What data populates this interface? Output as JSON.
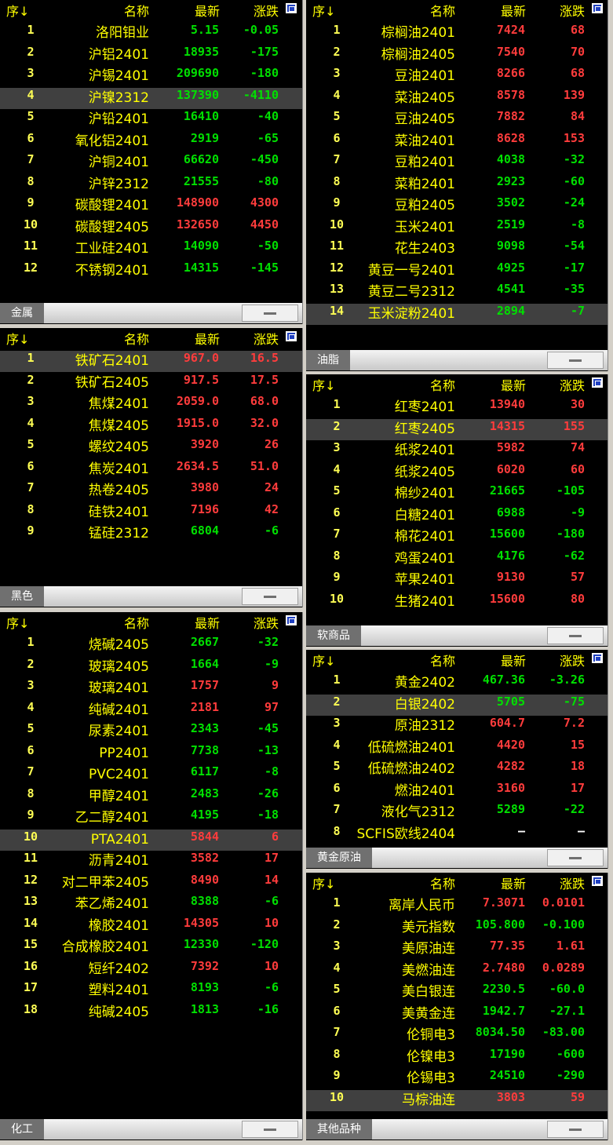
{
  "panels": [
    {
      "tab": "金属",
      "header": [
        "序↓",
        "名称",
        "最新",
        "涨跌"
      ],
      "selected_row": 3,
      "rows": [
        [
          "1",
          "洛阳钼业",
          "5.15",
          "-0.05"
        ],
        [
          "2",
          "沪铝2401",
          "18935",
          "-175"
        ],
        [
          "3",
          "沪锡2401",
          "209690",
          "-180"
        ],
        [
          "4",
          "沪镍2312",
          "137390",
          "-4110"
        ],
        [
          "5",
          "沪铅2401",
          "16410",
          "-40"
        ],
        [
          "6",
          "氧化铝2401",
          "2919",
          "-65"
        ],
        [
          "7",
          "沪铜2401",
          "66620",
          "-450"
        ],
        [
          "8",
          "沪锌2312",
          "21555",
          "-80"
        ],
        [
          "9",
          "碳酸锂2401",
          "148900",
          "4300"
        ],
        [
          "10",
          "碳酸锂2405",
          "132650",
          "4450"
        ],
        [
          "11",
          "工业硅2401",
          "14090",
          "-50"
        ],
        [
          "12",
          "不锈钢2401",
          "14315",
          "-145"
        ]
      ]
    },
    {
      "tab": "黑色",
      "header": [
        "序↓",
        "名称",
        "最新",
        "涨跌"
      ],
      "selected_row": 0,
      "rows": [
        [
          "1",
          "铁矿石2401",
          "967.0",
          "16.5"
        ],
        [
          "2",
          "铁矿石2405",
          "917.5",
          "17.5"
        ],
        [
          "3",
          "焦煤2401",
          "2059.0",
          "68.0"
        ],
        [
          "4",
          "焦煤2405",
          "1915.0",
          "32.0"
        ],
        [
          "5",
          "螺纹2405",
          "3920",
          "26"
        ],
        [
          "6",
          "焦炭2401",
          "2634.5",
          "51.0"
        ],
        [
          "7",
          "热卷2405",
          "3980",
          "24"
        ],
        [
          "8",
          "硅铁2401",
          "7196",
          "42"
        ],
        [
          "9",
          "锰硅2312",
          "6804",
          "-6"
        ]
      ]
    },
    {
      "tab": "化工",
      "header": [
        "序↓",
        "名称",
        "最新",
        "涨跌"
      ],
      "selected_row": 9,
      "rows": [
        [
          "1",
          "烧碱2405",
          "2667",
          "-32"
        ],
        [
          "2",
          "玻璃2405",
          "1664",
          "-9"
        ],
        [
          "3",
          "玻璃2401",
          "1757",
          "9"
        ],
        [
          "4",
          "纯碱2401",
          "2181",
          "97"
        ],
        [
          "5",
          "尿素2401",
          "2343",
          "-45"
        ],
        [
          "6",
          "PP2401",
          "7738",
          "-13"
        ],
        [
          "7",
          "PVC2401",
          "6117",
          "-8"
        ],
        [
          "8",
          "甲醇2401",
          "2483",
          "-26"
        ],
        [
          "9",
          "乙二醇2401",
          "4195",
          "-18"
        ],
        [
          "10",
          "PTA2401",
          "5844",
          "6"
        ],
        [
          "11",
          "沥青2401",
          "3582",
          "17"
        ],
        [
          "12",
          "对二甲苯2405",
          "8490",
          "14"
        ],
        [
          "13",
          "苯乙烯2401",
          "8388",
          "-6"
        ],
        [
          "14",
          "橡胶2401",
          "14305",
          "10"
        ],
        [
          "15",
          "合成橡胶2401",
          "12330",
          "-120"
        ],
        [
          "16",
          "短纤2402",
          "7392",
          "10"
        ],
        [
          "17",
          "塑料2401",
          "8193",
          "-6"
        ],
        [
          "18",
          "纯碱2405",
          "1813",
          "-16"
        ]
      ]
    },
    {
      "tab": "油脂",
      "header": [
        "序↓",
        "名称",
        "最新",
        "涨跌"
      ],
      "selected_row": 13,
      "rows": [
        [
          "1",
          "棕榈油2401",
          "7424",
          "68"
        ],
        [
          "2",
          "棕榈油2405",
          "7540",
          "70"
        ],
        [
          "3",
          "豆油2401",
          "8266",
          "68"
        ],
        [
          "4",
          "菜油2405",
          "8578",
          "139"
        ],
        [
          "5",
          "豆油2405",
          "7882",
          "84"
        ],
        [
          "6",
          "菜油2401",
          "8628",
          "153"
        ],
        [
          "7",
          "豆粕2401",
          "4038",
          "-32"
        ],
        [
          "8",
          "菜粕2401",
          "2923",
          "-60"
        ],
        [
          "9",
          "豆粕2405",
          "3502",
          "-24"
        ],
        [
          "10",
          "玉米2401",
          "2519",
          "-8"
        ],
        [
          "11",
          "花生2403",
          "9098",
          "-54"
        ],
        [
          "12",
          "黄豆一号2401",
          "4925",
          "-17"
        ],
        [
          "13",
          "黄豆二号2312",
          "4541",
          "-35"
        ],
        [
          "14",
          "玉米淀粉2401",
          "2894",
          "-7"
        ]
      ]
    },
    {
      "tab": "软商品",
      "header": [
        "序↓",
        "名称",
        "最新",
        "涨跌"
      ],
      "selected_row": 1,
      "rows": [
        [
          "1",
          "红枣2401",
          "13940",
          "30"
        ],
        [
          "2",
          "红枣2405",
          "14315",
          "155"
        ],
        [
          "3",
          "纸浆2401",
          "5982",
          "74"
        ],
        [
          "4",
          "纸浆2405",
          "6020",
          "60"
        ],
        [
          "5",
          "棉纱2401",
          "21665",
          "-105"
        ],
        [
          "6",
          "白糖2401",
          "6988",
          "-9"
        ],
        [
          "7",
          "棉花2401",
          "15600",
          "-180"
        ],
        [
          "8",
          "鸡蛋2401",
          "4176",
          "-62"
        ],
        [
          "9",
          "苹果2401",
          "9130",
          "57"
        ],
        [
          "10",
          "生猪2401",
          "15600",
          "80"
        ]
      ]
    },
    {
      "tab": "黄金原油",
      "header": [
        "序↓",
        "名称",
        "最新",
        "涨跌"
      ],
      "selected_row": 1,
      "rows": [
        [
          "1",
          "黄金2402",
          "467.36",
          "-3.26"
        ],
        [
          "2",
          "白银2402",
          "5705",
          "-75"
        ],
        [
          "3",
          "原油2312",
          "604.7",
          "7.2"
        ],
        [
          "4",
          "低硫燃油2401",
          "4420",
          "15"
        ],
        [
          "5",
          "低硫燃油2402",
          "4282",
          "18"
        ],
        [
          "6",
          "燃油2401",
          "3160",
          "17"
        ],
        [
          "7",
          "液化气2312",
          "5289",
          "-22"
        ],
        [
          "8",
          "SCFIS欧线2404",
          "—",
          "—"
        ]
      ]
    },
    {
      "tab": "其他品种",
      "header": [
        "序↓",
        "名称",
        "最新",
        "涨跌"
      ],
      "selected_row": 9,
      "rows": [
        [
          "1",
          "离岸人民币",
          "7.3071",
          "0.0101"
        ],
        [
          "2",
          "美元指数",
          "105.800",
          "-0.100"
        ],
        [
          "3",
          "美原油连",
          "77.35",
          "1.61"
        ],
        [
          "4",
          "美燃油连",
          "2.7480",
          "0.0289"
        ],
        [
          "5",
          "美白银连",
          "2230.5",
          "-60.0"
        ],
        [
          "6",
          "美黄金连",
          "1942.7",
          "-27.1"
        ],
        [
          "7",
          "伦铜电3",
          "8034.50",
          "-83.00"
        ],
        [
          "8",
          "伦镍电3",
          "17190",
          "-600"
        ],
        [
          "9",
          "伦锡电3",
          "24510",
          "-290"
        ],
        [
          "10",
          "马棕油连",
          "3803",
          "59"
        ]
      ]
    }
  ]
}
